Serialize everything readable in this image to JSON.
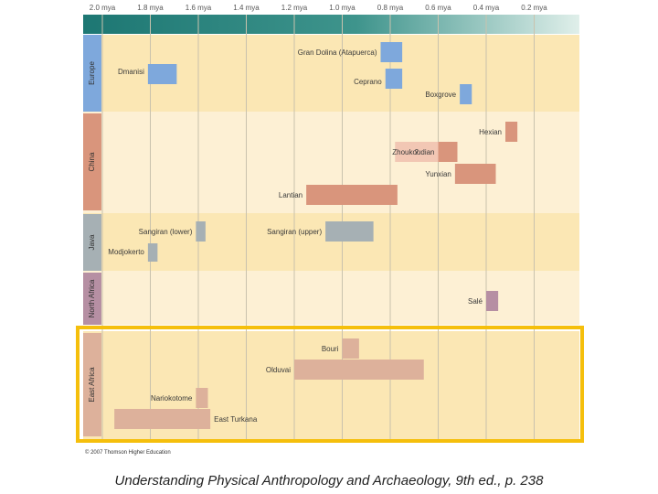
{
  "chart_data": {
    "type": "range-bar",
    "title": "",
    "xlabel": "",
    "ylabel": "",
    "x_axis": {
      "unit": "mya",
      "reversed": true,
      "xlim": [
        2.0,
        0.1
      ],
      "ticks": [
        {
          "value": 2.0,
          "label": "2.0 mya"
        },
        {
          "value": 1.8,
          "label": "1.8 mya"
        },
        {
          "value": 1.6,
          "label": "1.6 mya"
        },
        {
          "value": 1.4,
          "label": "1.4 mya"
        },
        {
          "value": 1.2,
          "label": "1.2 mya"
        },
        {
          "value": 1.0,
          "label": "1.0 mya"
        },
        {
          "value": 0.8,
          "label": "0.8 mya"
        },
        {
          "value": 0.6,
          "label": "0.6 mya"
        },
        {
          "value": 0.4,
          "label": "0.4 mya"
        },
        {
          "value": 0.2,
          "label": "0.2 mya"
        }
      ]
    },
    "regions": [
      {
        "name": "Europe",
        "color": "#7ea8dc",
        "sites": [
          {
            "name": "Gran Dolina (Atapuerca)",
            "start": 0.84,
            "end": 0.75
          },
          {
            "name": "Dmanisi",
            "start": 1.81,
            "end": 1.69
          },
          {
            "name": "Ceprano",
            "start": 0.82,
            "end": 0.75
          },
          {
            "name": "Boxgrove",
            "start": 0.51,
            "end": 0.46
          }
        ]
      },
      {
        "name": "China",
        "color": "#d9957c",
        "sites": [
          {
            "name": "Hexian",
            "start": 0.32,
            "end": 0.27
          },
          {
            "name": "Zhoukoudian",
            "start": 0.78,
            "end": 0.6,
            "uncertain": true,
            "marker": "?"
          },
          {
            "name": "Zhoukoudian",
            "start": 0.6,
            "end": 0.52
          },
          {
            "name": "Yunxian",
            "start": 0.53,
            "end": 0.36
          },
          {
            "name": "Lantian",
            "start": 1.15,
            "end": 0.77
          }
        ]
      },
      {
        "name": "Java",
        "color": "#a6b0b4",
        "sites": [
          {
            "name": "Sangiran (lower)",
            "start": 1.61,
            "end": 1.57
          },
          {
            "name": "Sangiran (upper)",
            "start": 1.07,
            "end": 0.87
          },
          {
            "name": "Modjokerto",
            "start": 1.81,
            "end": 1.77
          }
        ]
      },
      {
        "name": "North Africa",
        "color": "#b68fa3",
        "sites": [
          {
            "name": "Salé",
            "start": 0.4,
            "end": 0.35
          }
        ]
      },
      {
        "name": "East Africa",
        "color": "#ddb19b",
        "highlighted": true,
        "sites": [
          {
            "name": "Bouri",
            "start": 1.0,
            "end": 0.93
          },
          {
            "name": "Olduvai",
            "start": 1.2,
            "end": 0.66
          },
          {
            "name": "Nariokotome",
            "start": 1.61,
            "end": 1.56
          },
          {
            "name": "East Turkana",
            "start": 1.95,
            "end": 1.55
          }
        ]
      }
    ],
    "copyright": "© 2007 Thomson Higher Education",
    "caption": "Understanding Physical Anthropology and Archaeology, 9th ed., p. 238"
  }
}
